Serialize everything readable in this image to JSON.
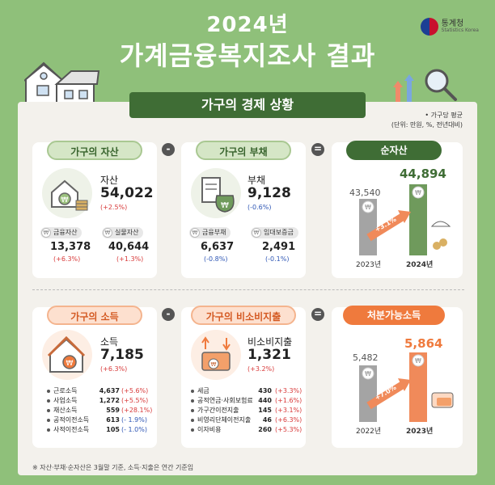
{
  "header": {
    "year": "2024년",
    "title": "가계금융복지조사 결과",
    "org": "통계청",
    "org_en": "Statistics Korea"
  },
  "section": {
    "title": "가구의 경제 상황",
    "note_line1": "• 가구당 평균",
    "note_line2": "(단위: 만원, %, 전년대비)"
  },
  "assets": {
    "pill": "가구의 자산",
    "label": "자산",
    "value": "54,022",
    "change": "(+2.5%)",
    "sub": [
      {
        "label": "금융자산",
        "value": "13,378",
        "change": "(+6.3%)"
      },
      {
        "label": "실물자산",
        "value": "40,644",
        "change": "(+1.3%)"
      }
    ]
  },
  "debt": {
    "pill": "가구의 부채",
    "label": "부채",
    "value": "9,128",
    "change": "(-0.6%)",
    "sub": [
      {
        "label": "금융부채",
        "value": "6,637",
        "change": "(-0.8%)"
      },
      {
        "label": "임대보증금",
        "value": "2,491",
        "change": "(-0.1%)"
      }
    ]
  },
  "net_assets": {
    "pill": "순자산",
    "rate": "+3.1%",
    "prev_value": "43,540",
    "curr_value": "44,894",
    "prev_year": "2023년",
    "curr_year": "2024년"
  },
  "income": {
    "pill": "가구의 소득",
    "label": "소득",
    "value": "7,185",
    "change": "(+6.3%)",
    "items": [
      {
        "name": "근로소득",
        "value": "4,637",
        "change": "(+5.6%)"
      },
      {
        "name": "사업소득",
        "value": "1,272",
        "change": "(+5.5%)"
      },
      {
        "name": "재산소득",
        "value": "559",
        "change": "(+28.1%)"
      },
      {
        "name": "공적이전소득",
        "value": "613",
        "change": "(- 1.9%)"
      },
      {
        "name": "사적이전소득",
        "value": "105",
        "change": "(- 1.0%)"
      }
    ]
  },
  "expense": {
    "pill": "가구의 비소비지출",
    "label": "비소비지출",
    "value": "1,321",
    "change": "(+3.2%)",
    "items": [
      {
        "name": "세금",
        "value": "430",
        "change": "(+3.3%)"
      },
      {
        "name": "공적연금·사회보험료",
        "value": "440",
        "change": "(+1.6%)"
      },
      {
        "name": "가구간이전지출",
        "value": "145",
        "change": "(+3.1%)"
      },
      {
        "name": "비영리단체이전지출",
        "value": "46",
        "change": "(+6.3%)"
      },
      {
        "name": "이자비용",
        "value": "260",
        "change": "(+5.3%)"
      }
    ]
  },
  "disposable": {
    "pill": "처분가능소득",
    "rate": "+7.0%",
    "prev_value": "5,482",
    "curr_value": "5,864",
    "prev_year": "2022년",
    "curr_year": "2023년"
  },
  "operators": {
    "minus": "-",
    "equals": "="
  },
  "footnote": "※ 자산·부채·순자산은 3월말 기준, 소득·지출은 연간 기준임",
  "won_symbol": "₩",
  "colors": {
    "green": "#3f6d35",
    "orange": "#ef7a3d",
    "red": "#d83a3a",
    "blue": "#2f57b5",
    "background": "#8fc07a"
  }
}
